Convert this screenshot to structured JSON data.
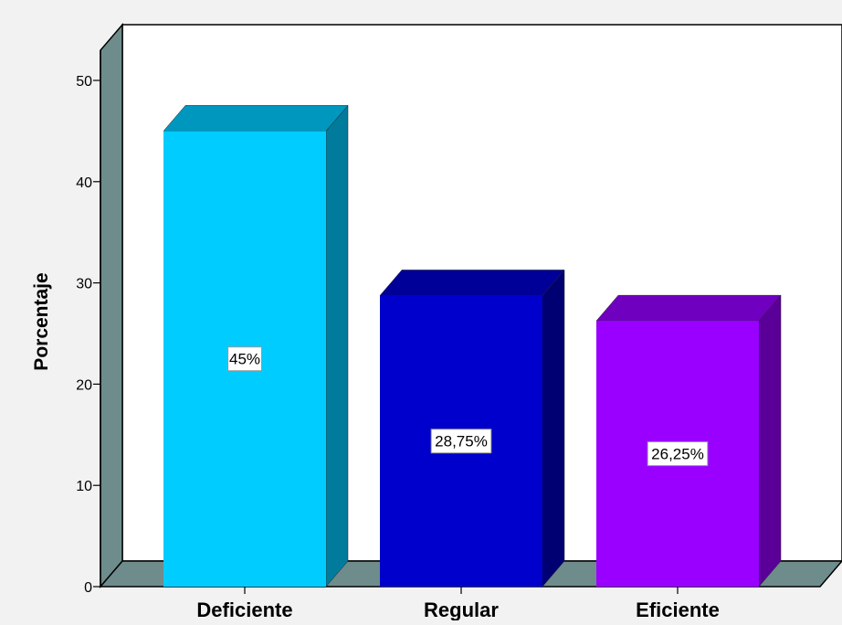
{
  "chart_data": {
    "type": "bar",
    "categories": [
      "Deficiente",
      "Regular",
      "Eficiente"
    ],
    "values": [
      45,
      28.75,
      26.25
    ],
    "data_labels": [
      "45%",
      "28,75%",
      "26,25%"
    ],
    "title": "",
    "xlabel": "",
    "ylabel": "Porcentaje",
    "ylim": [
      0,
      50
    ],
    "yticks": [
      0,
      10,
      20,
      30,
      40,
      50
    ],
    "grid": false,
    "style": "3d",
    "colors": {
      "bar_fronts": [
        "#00ccff",
        "#0000cc",
        "#9900ff"
      ],
      "bar_sides": [
        "#007b9c",
        "#000073",
        "#5a0099"
      ],
      "bar_tops": [
        "#0097bf",
        "#000099",
        "#7000bf"
      ],
      "wall": "#ffffff",
      "side_wall": "#6f8c8c",
      "floor": "#6f8c8c",
      "background": "#f2f2f2"
    }
  }
}
